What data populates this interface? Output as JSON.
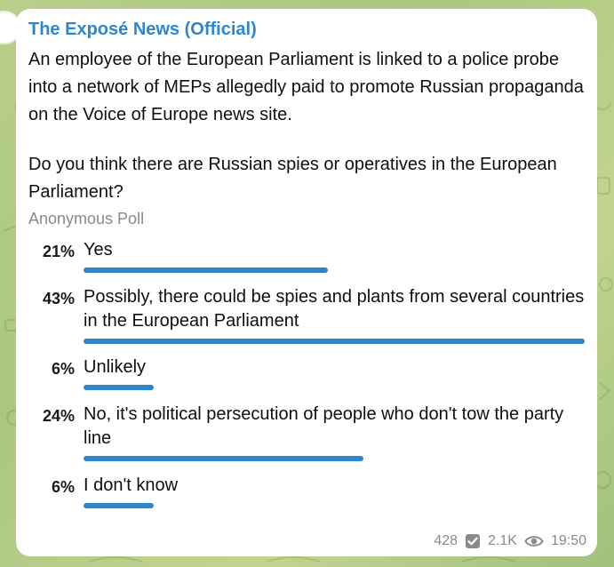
{
  "channel": {
    "name": "The Exposé News (Official)"
  },
  "message": {
    "text": "An employee of the European Parliament is linked to a police probe into a network of MEPs allegedly paid to promote Russian propaganda on the Voice of Europe news site.",
    "question": "Do you think there are Russian spies or operatives in the European Parliament?"
  },
  "poll": {
    "type_label": "Anonymous Poll",
    "options": [
      {
        "percent_label": "21%",
        "percent": 21,
        "text": "Yes"
      },
      {
        "percent_label": "43%",
        "percent": 43,
        "text": "Possibly, there could be spies and plants from several countries in the European Parliament"
      },
      {
        "percent_label": "6%",
        "percent": 6,
        "text": "Unlikely"
      },
      {
        "percent_label": "24%",
        "percent": 24,
        "text": "No, it's political persecution of people who don't tow the party line"
      },
      {
        "percent_label": "6%",
        "percent": 6,
        "text": "I don't know"
      }
    ]
  },
  "footer": {
    "votes": "428",
    "views": "2.1K",
    "time": "19:50",
    "vote_icon": "check-box-icon",
    "view_icon": "eye-icon"
  },
  "colors": {
    "accent": "#2f86c9",
    "text": "#0f0f0f",
    "muted": "#8a8a8a",
    "bubble": "#ffffff"
  }
}
